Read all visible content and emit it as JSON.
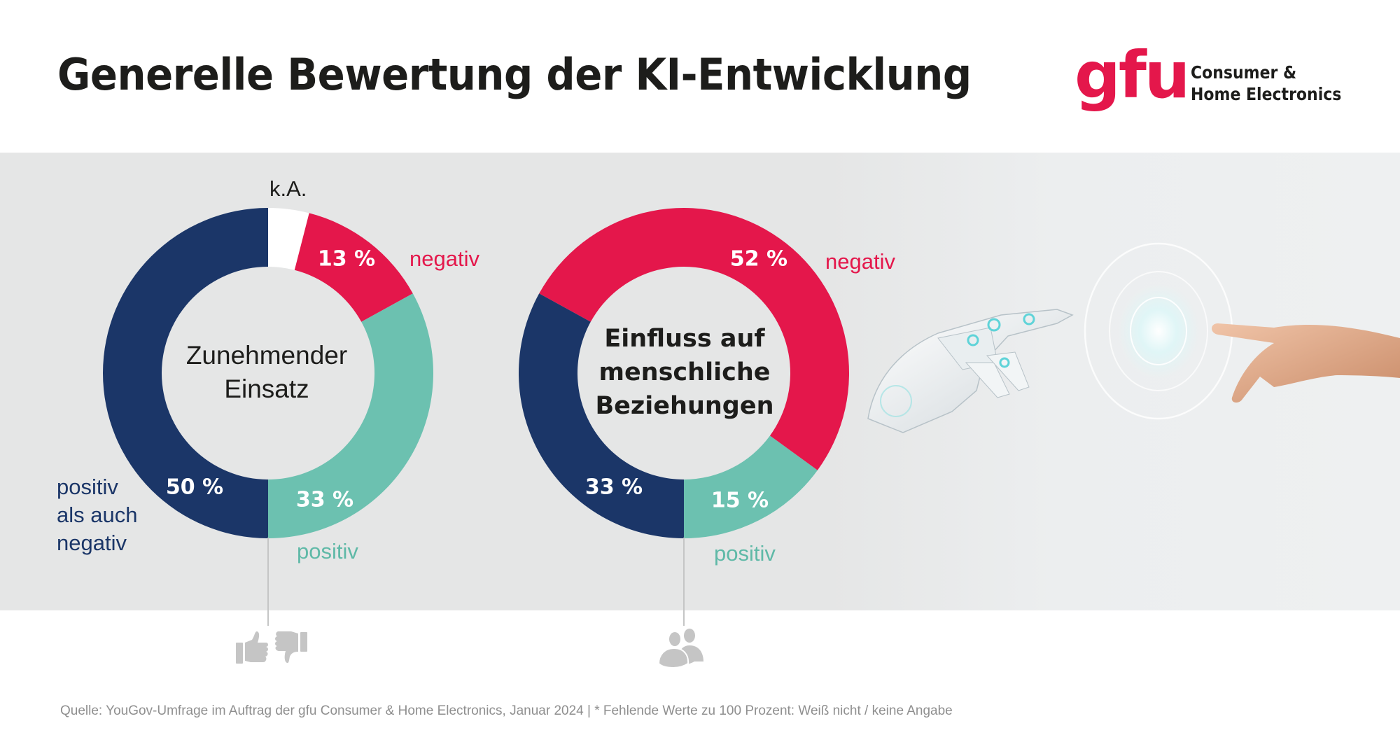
{
  "header": {
    "title": "Generelle Bewertung der KI-Entwicklung"
  },
  "logo": {
    "mark": "gfu",
    "line1": "Consumer &",
    "line2": "Home Electronics",
    "brand_color": "#e4174b"
  },
  "colors": {
    "negativ": "#e4174b",
    "positiv": "#6cc1b0",
    "beides": "#1b3668",
    "ka": "#ffffff"
  },
  "chart_data": [
    {
      "type": "pie",
      "variant": "donut",
      "title": "Zunehmender Einsatz",
      "title_lines": [
        "Zunehmender",
        "Einsatz"
      ],
      "start": "top",
      "direction": "clockwise",
      "slices": [
        {
          "key": "ka",
          "label": "k.A.",
          "value": 4,
          "value_label": ""
        },
        {
          "key": "negativ",
          "label": "negativ",
          "value": 13,
          "value_label": "13 %"
        },
        {
          "key": "positiv",
          "label": "positiv",
          "value": 33,
          "value_label": "33 %"
        },
        {
          "key": "beides",
          "label": "positiv als auch negativ",
          "label_lines": [
            "positiv",
            "als auch",
            "negativ"
          ],
          "value": 50,
          "value_label": "50 %"
        }
      ],
      "icon": "thumbs-up-down-icon"
    },
    {
      "type": "pie",
      "variant": "donut",
      "title": "Einfluss auf menschliche Beziehungen",
      "title_lines": [
        "Einfluss auf",
        "menschliche",
        "Beziehungen"
      ],
      "start": "bottom",
      "direction": "counterclockwise",
      "slices": [
        {
          "key": "positiv",
          "label": "positiv",
          "value": 15,
          "value_label": "15 %"
        },
        {
          "key": "negativ",
          "label": "negativ",
          "value": 52,
          "value_label": "52 %"
        },
        {
          "key": "beides",
          "label": "positiv als auch negativ",
          "value": 33,
          "value_label": "33 %"
        }
      ],
      "icon": "people-icon"
    }
  ],
  "footer": {
    "source": "Quelle:  YouGov-Umfrage im Auftrag der gfu Consumer & Home Electronics, Januar 2024 | * Fehlende Werte zu 100 Prozent: Weiß nicht / keine Angabe"
  }
}
